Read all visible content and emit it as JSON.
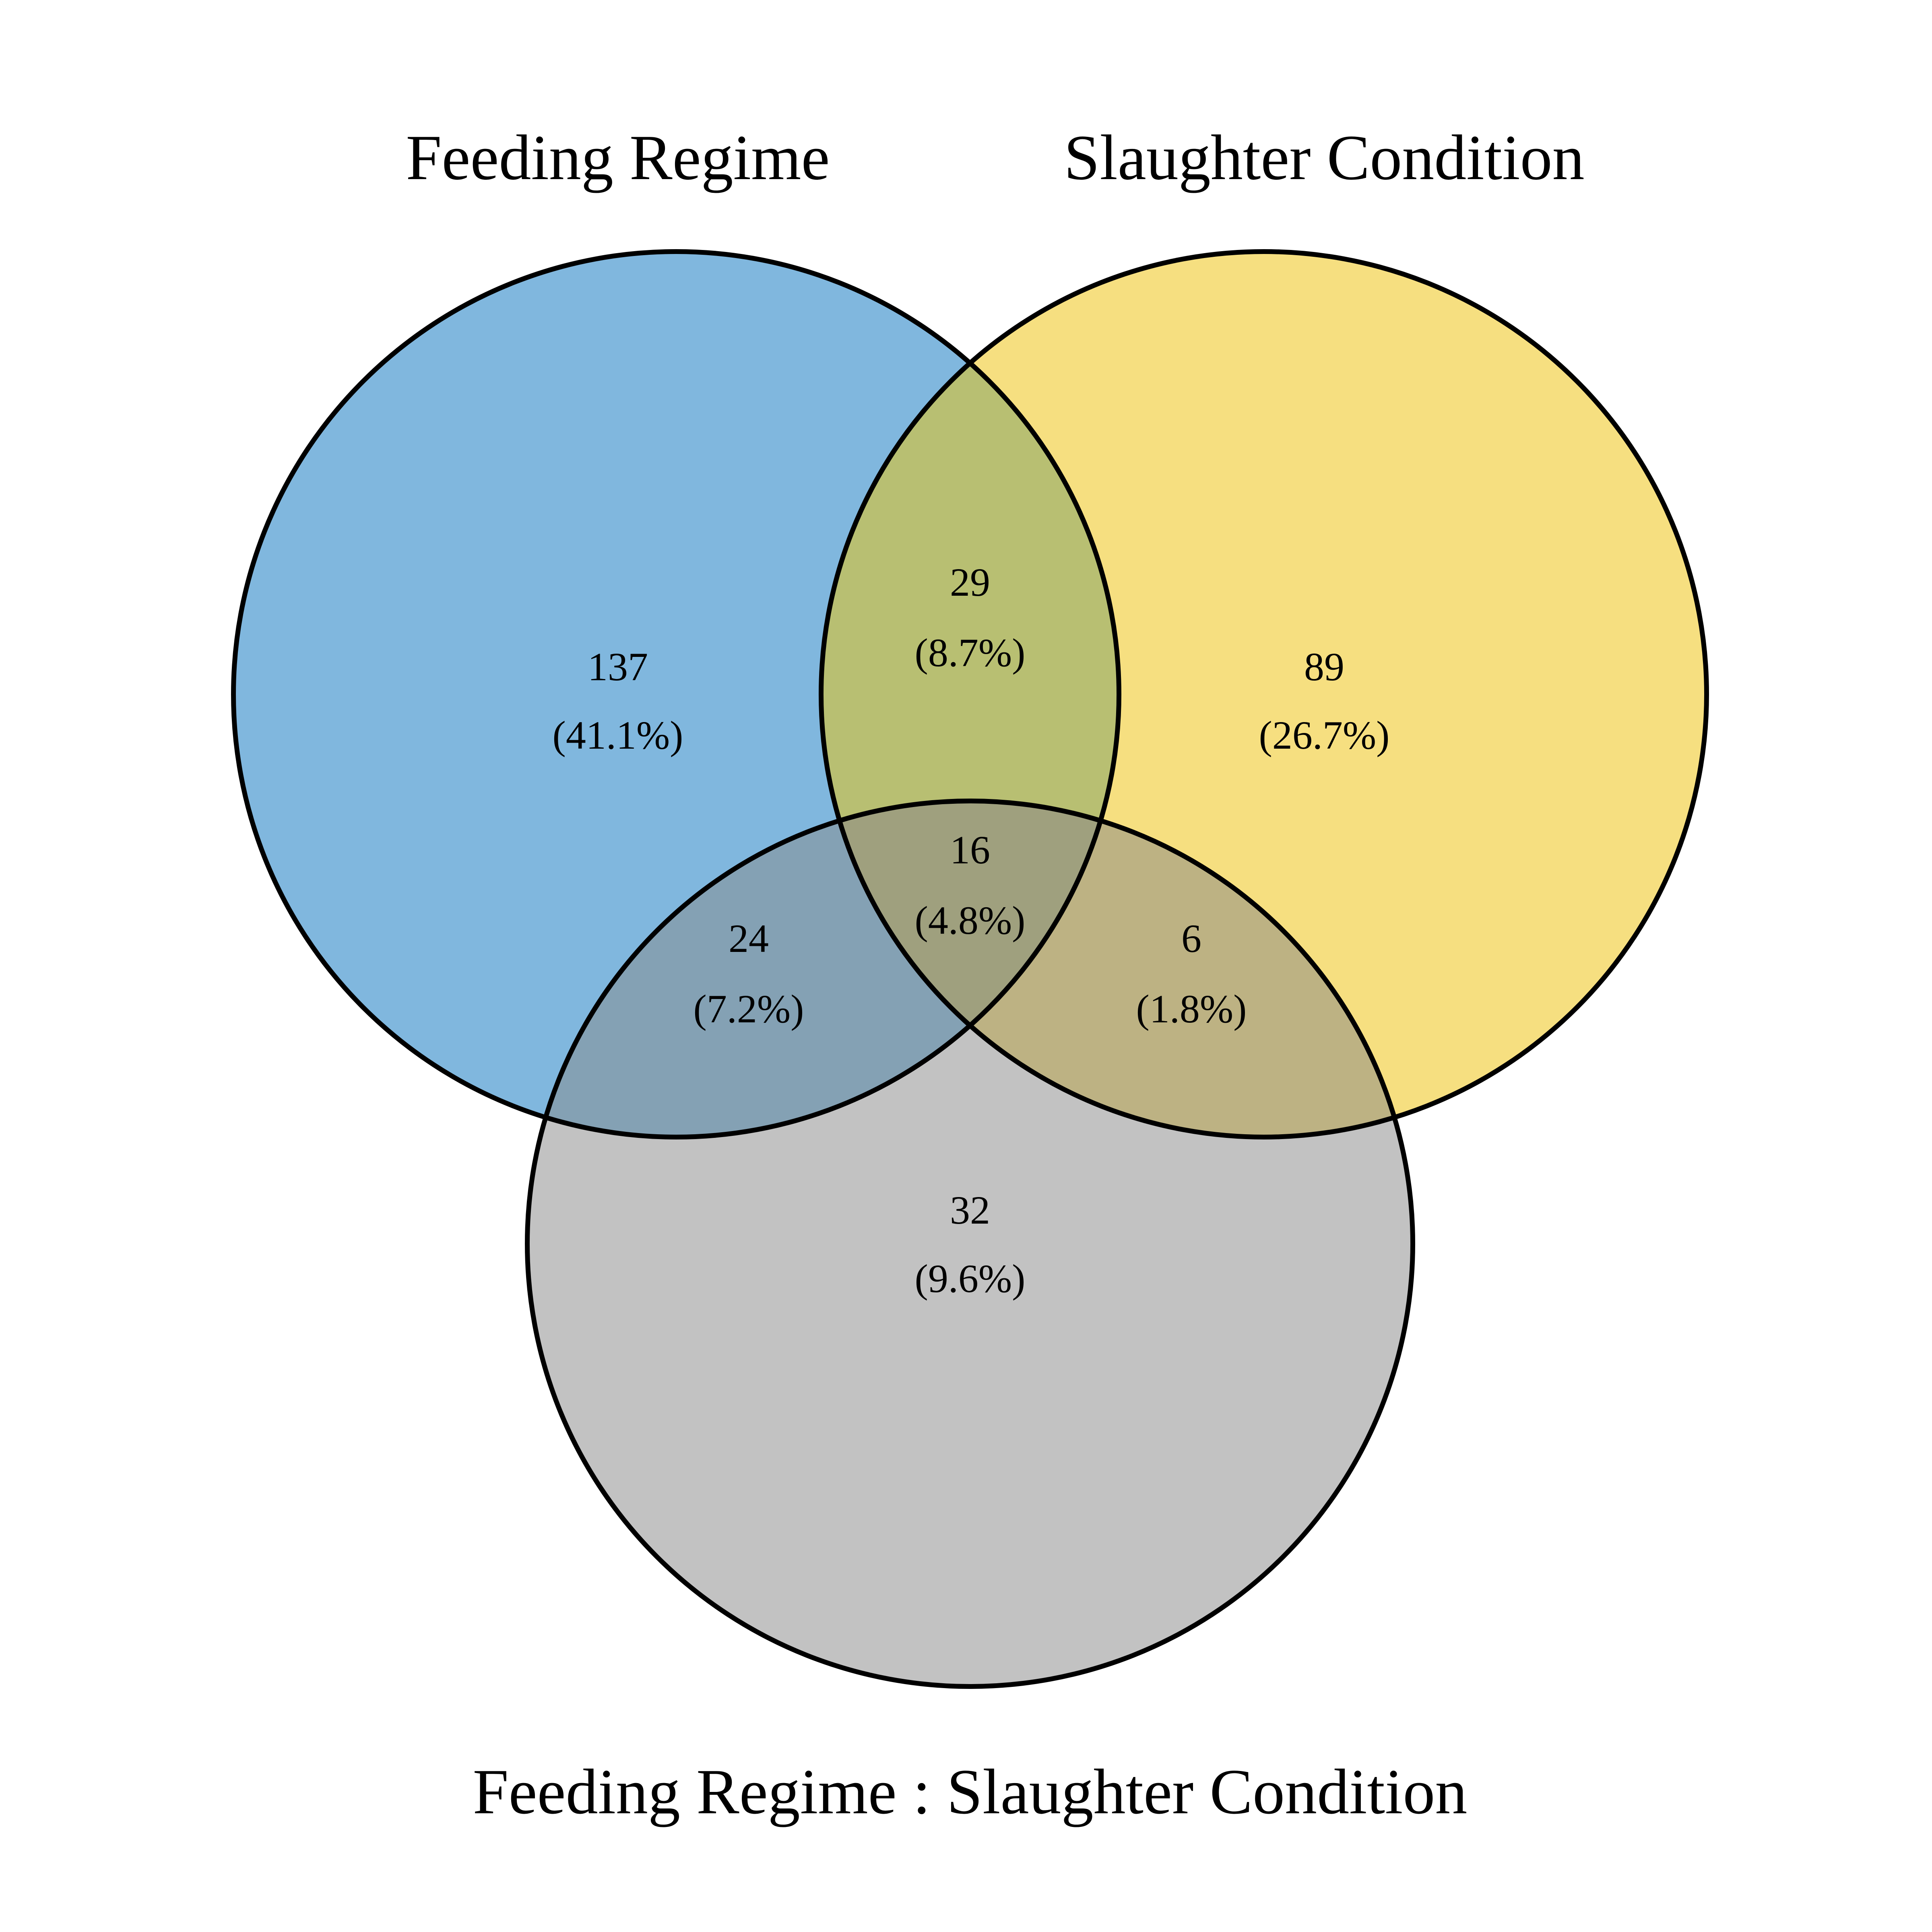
{
  "sets": [
    {
      "id": "A",
      "label": "Feeding Regime",
      "color": "#80B7DE"
    },
    {
      "id": "B",
      "label": "Slaughter Condition",
      "color": "#F6DF80"
    },
    {
      "id": "C",
      "label": "Feeding Regime : Slaughter Condition",
      "color": "#C2C2C2"
    }
  ],
  "overlap_colors": {
    "A_B": "#B8BF72",
    "A_C": "#84A1B4",
    "B_C": "#BDB283",
    "A_B_C": "#9FA07E"
  },
  "regions": {
    "A_only": {
      "count": "137",
      "percent": "(41.1%)"
    },
    "B_only": {
      "count": "89",
      "percent": "(26.7%)"
    },
    "C_only": {
      "count": "32",
      "percent": "(9.6%)"
    },
    "A_B": {
      "count": "29",
      "percent": "(8.7%)"
    },
    "A_C": {
      "count": "24",
      "percent": "(7.2%)"
    },
    "B_C": {
      "count": "6",
      "percent": "(1.8%)"
    },
    "A_B_C": {
      "count": "16",
      "percent": "(4.8%)"
    }
  }
}
